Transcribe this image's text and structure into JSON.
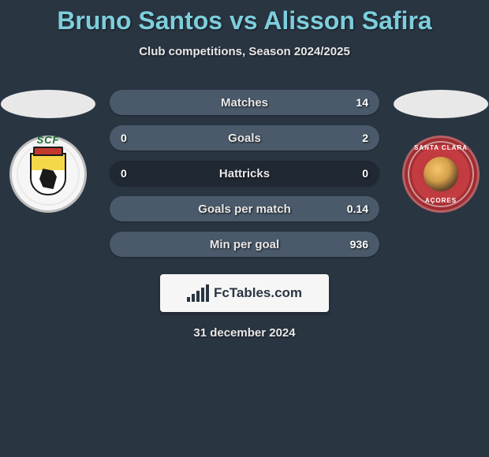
{
  "title": "Bruno Santos vs Alisson Safira",
  "subtitle": "Club competitions, Season 2024/2025",
  "date": "31 december 2024",
  "brand": "FcTables.com",
  "colors": {
    "background": "#2a3542",
    "title": "#7dcedc",
    "bar_bg": "#1f2833",
    "bar_fill": "#4a5a6a",
    "text": "#e8e8e8"
  },
  "left_club": {
    "initials": "SCF",
    "name": "Farense"
  },
  "right_club": {
    "top_text": "SANTA CLARA",
    "bottom_text": "AÇORES",
    "name": "Santa Clara"
  },
  "stats": [
    {
      "label": "Matches",
      "left_val": "",
      "right_val": "14",
      "left_pct": 0,
      "right_pct": 100
    },
    {
      "label": "Goals",
      "left_val": "0",
      "right_val": "2",
      "left_pct": 0,
      "right_pct": 100
    },
    {
      "label": "Hattricks",
      "left_val": "0",
      "right_val": "0",
      "left_pct": 0,
      "right_pct": 0
    },
    {
      "label": "Goals per match",
      "left_val": "",
      "right_val": "0.14",
      "left_pct": 0,
      "right_pct": 100
    },
    {
      "label": "Min per goal",
      "left_val": "",
      "right_val": "936",
      "left_pct": 0,
      "right_pct": 100
    }
  ]
}
